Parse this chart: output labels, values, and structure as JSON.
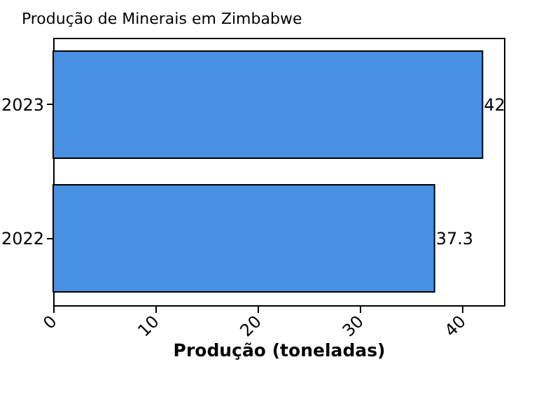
{
  "chart_data": {
    "type": "bar",
    "orientation": "horizontal",
    "title": "Produção de Minerais em Zimbabwe",
    "xlabel": "Produção (toneladas)",
    "categories": [
      "2023",
      "2022"
    ],
    "values": [
      42,
      37.3
    ],
    "color": "#4a90e2",
    "xlim": [
      0,
      44.1
    ],
    "xticks": [
      0,
      10,
      20,
      30,
      40
    ],
    "data_labels": true
  }
}
